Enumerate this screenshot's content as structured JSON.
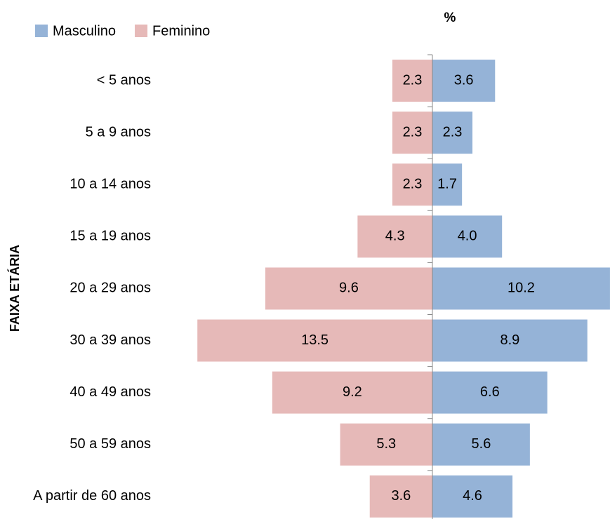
{
  "chart_data": {
    "type": "pyramid",
    "title": "%",
    "y_label": "FAIXA ETÁRIA",
    "categories": [
      "< 5 anos",
      "5 a 9 anos",
      "10 a 14 anos",
      "15 a 19 anos",
      "20 a 29 anos",
      "30 a 39 anos",
      "40 a 49 anos",
      "50 a 59 anos",
      "A partir de 60 anos"
    ],
    "series": [
      {
        "name": "Masculino",
        "color": "#95b3d7",
        "values": [
          3.6,
          2.3,
          1.7,
          4.0,
          10.2,
          8.9,
          6.6,
          5.6,
          4.6
        ],
        "value_labels": [
          "3.6",
          "2.3",
          "1.7",
          "4.0",
          "10.2",
          "8.9",
          "6.6",
          "5.6",
          "4.6"
        ]
      },
      {
        "name": "Feminino",
        "color": "#e6b9b8",
        "values": [
          2.3,
          2.3,
          2.3,
          4.3,
          9.6,
          13.5,
          9.2,
          5.3,
          3.6
        ],
        "value_labels": [
          "2.3",
          "2.3",
          "2.3",
          "4.3",
          "9.6",
          "13.5",
          "9.2",
          "5.3",
          "3.6"
        ]
      }
    ]
  }
}
